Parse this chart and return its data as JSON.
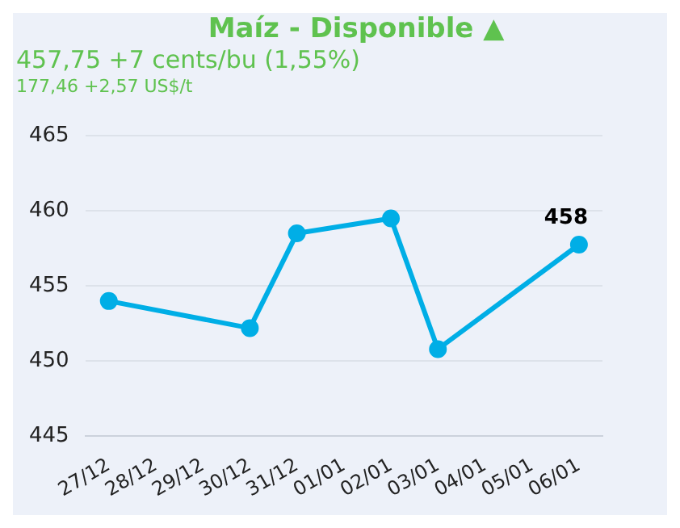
{
  "chart_data": {
    "type": "line",
    "title": "Maíz - Disponible ▲",
    "subtitle": "457,75 +7 cents/bu (1,55%)",
    "annotations": [
      "177,46 +2,57 US$/t"
    ],
    "categories": [
      "27/12",
      "28/12",
      "29/12",
      "30/12",
      "31/12",
      "01/01",
      "02/01",
      "03/01",
      "04/01",
      "05/01",
      "06/01"
    ],
    "series": [
      {
        "color": "#00aee6",
        "values": [
          454.0,
          null,
          null,
          452.2,
          458.5,
          null,
          459.5,
          450.8,
          null,
          null,
          457.75
        ],
        "value_labels": [
          null,
          null,
          null,
          null,
          null,
          null,
          null,
          null,
          null,
          null,
          "458"
        ]
      }
    ],
    "ylim": [
      445,
      465
    ],
    "yticks": [
      445,
      450,
      455,
      460,
      465
    ],
    "grid": "y",
    "legend": false,
    "marker": "circle",
    "line_style": "solid"
  }
}
